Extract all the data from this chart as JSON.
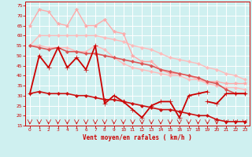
{
  "background_color": "#cff0f0",
  "grid_color": "#ffffff",
  "xlabel": "Vent moyen/en rafales ( km/h )",
  "xlim": [
    -0.5,
    23.5
  ],
  "ylim": [
    15,
    77
  ],
  "yticks": [
    15,
    20,
    25,
    30,
    35,
    40,
    45,
    50,
    55,
    60,
    65,
    70,
    75
  ],
  "xticks": [
    0,
    1,
    2,
    3,
    4,
    5,
    6,
    7,
    8,
    9,
    10,
    11,
    12,
    13,
    14,
    15,
    16,
    17,
    18,
    19,
    20,
    21,
    22,
    23
  ],
  "lines": [
    {
      "x": [
        0,
        1,
        2,
        3,
        4,
        5,
        6,
        7,
        8,
        9,
        10,
        11,
        12,
        13,
        14,
        15,
        16,
        17,
        18,
        19,
        20,
        21,
        22,
        23
      ],
      "y": [
        55,
        60,
        60,
        60,
        60,
        60,
        60,
        60,
        59,
        58,
        57,
        55,
        54,
        53,
        51,
        49,
        48,
        47,
        46,
        44,
        43,
        41,
        40,
        38
      ],
      "color": "#ffbbbb",
      "lw": 1.0,
      "marker": "D",
      "ms": 2.0
    },
    {
      "x": [
        0,
        1,
        2,
        3,
        4,
        5,
        6,
        7,
        8,
        9,
        10,
        11,
        12,
        13,
        14,
        15,
        16,
        17,
        18,
        19,
        20,
        21,
        22,
        23
      ],
      "y": [
        65,
        73,
        72,
        66,
        65,
        73,
        65,
        65,
        68,
        62,
        61,
        50,
        47,
        47,
        43,
        41,
        41,
        40,
        38,
        37,
        37,
        36,
        36,
        36
      ],
      "color": "#ffaaaa",
      "lw": 1.0,
      "marker": "*",
      "ms": 3.5
    },
    {
      "x": [
        0,
        1,
        2,
        3,
        4,
        5,
        6,
        7,
        8,
        9,
        10,
        11,
        12,
        13,
        14,
        15,
        16,
        17,
        18,
        19,
        20,
        21,
        22,
        23
      ],
      "y": [
        55,
        55,
        54,
        54,
        54,
        52,
        52,
        55,
        53,
        49,
        46,
        44,
        43,
        42,
        41,
        40,
        40,
        38,
        38,
        36,
        35,
        34,
        34,
        33
      ],
      "color": "#ffbbbb",
      "lw": 1.0,
      "marker": "D",
      "ms": 2.0
    },
    {
      "x": [
        0,
        1,
        2,
        3,
        4,
        5,
        6,
        7,
        8,
        9,
        10,
        11,
        12,
        13,
        14,
        15,
        16,
        17,
        18,
        19,
        20,
        21,
        22,
        23
      ],
      "y": [
        55,
        54,
        53,
        54,
        52,
        52,
        51,
        51,
        50,
        49,
        48,
        47,
        46,
        45,
        43,
        42,
        41,
        40,
        39,
        37,
        36,
        33,
        31,
        31
      ],
      "color": "#dd5555",
      "lw": 1.2,
      "marker": "D",
      "ms": 2.0
    },
    {
      "x": [
        0,
        1,
        2,
        3,
        4,
        5,
        6,
        7,
        8,
        9,
        10,
        11,
        12,
        13,
        14,
        15,
        16,
        17,
        18,
        19,
        20,
        21,
        22,
        23
      ],
      "y": [
        31,
        50,
        44,
        54,
        44,
        49,
        43,
        55,
        26,
        30,
        27,
        23,
        19,
        25,
        27,
        27,
        19,
        30,
        31,
        32,
        null,
        null,
        null,
        null
      ],
      "color": "#cc0000",
      "lw": 1.3,
      "marker": "+",
      "ms": 4.0
    },
    {
      "x": [
        0,
        1,
        2,
        3,
        4,
        5,
        6,
        7,
        8,
        9,
        10,
        11,
        12,
        13,
        14,
        15,
        16,
        17,
        18,
        19,
        20,
        21,
        22,
        23
      ],
      "y": [
        31,
        32,
        31,
        31,
        31,
        30,
        30,
        29,
        28,
        28,
        27,
        26,
        25,
        24,
        23,
        23,
        22,
        21,
        20,
        20,
        18,
        17,
        17,
        17
      ],
      "color": "#cc1111",
      "lw": 1.2,
      "marker": "D",
      "ms": 2.0
    },
    {
      "x": [
        19,
        20,
        21,
        22,
        23
      ],
      "y": [
        27,
        26,
        31,
        31,
        31
      ],
      "color": "#cc0000",
      "lw": 1.3,
      "marker": "+",
      "ms": 4.0
    }
  ]
}
